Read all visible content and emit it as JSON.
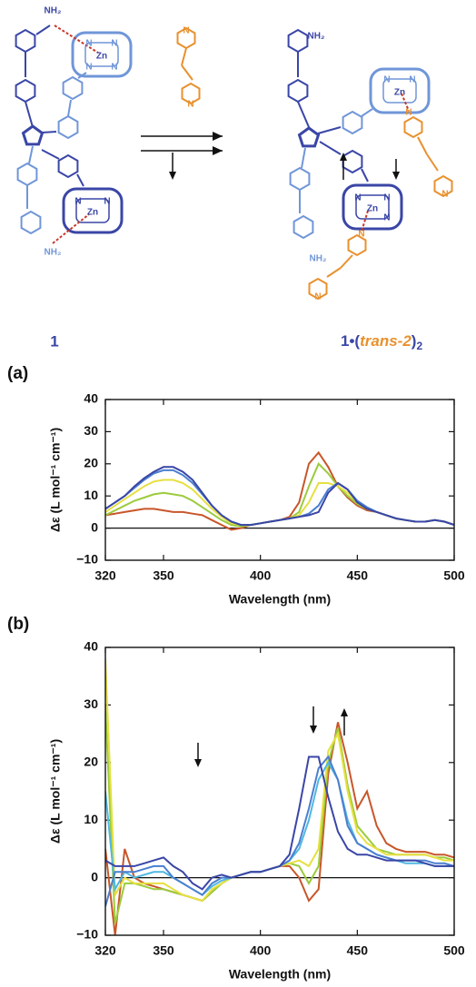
{
  "scheme": {
    "reactant_label": "1",
    "product_label": [
      "1",
      "•(",
      "trans-2",
      ")",
      "2"
    ],
    "atom_labels": [
      "NH₂",
      "Zn",
      "N",
      "N",
      "N",
      "N",
      "Zn",
      "N",
      "N",
      "NH₂",
      "N",
      "N",
      "NH₂",
      "Zn",
      "N",
      "N",
      "N",
      "Zn",
      "N",
      "N",
      "NH₂",
      "N",
      "N",
      "N",
      "N"
    ]
  },
  "chart_data": [
    {
      "type": "line",
      "panel_label": "(a)",
      "x_label": "Wavelength (nm)",
      "y_label": "Δε (L mol⁻¹ cm⁻¹)",
      "x": [
        320,
        325,
        330,
        335,
        340,
        345,
        350,
        355,
        360,
        365,
        370,
        375,
        380,
        385,
        390,
        395,
        400,
        405,
        410,
        415,
        420,
        425,
        430,
        435,
        440,
        445,
        450,
        455,
        460,
        465,
        470,
        475,
        480,
        485,
        490,
        495,
        500
      ],
      "series": [
        {
          "color": "#3a46a6",
          "values": [
            6,
            8,
            10,
            13,
            15.5,
            17.5,
            19,
            19,
            17.5,
            15,
            11,
            7,
            4,
            2,
            1,
            1,
            1.5,
            2,
            2.5,
            3,
            3.5,
            4,
            5,
            11,
            14,
            12,
            8,
            6,
            5,
            4,
            3,
            2.5,
            2,
            2,
            2.5,
            2,
            1
          ]
        },
        {
          "color": "#4b7fd0",
          "values": [
            6,
            8,
            10,
            12.5,
            15,
            17,
            18,
            18,
            16.5,
            14,
            10.5,
            7,
            4,
            2,
            1,
            1,
            1.5,
            2,
            2.5,
            3,
            3.5,
            4.5,
            7,
            12,
            14,
            12,
            8.5,
            6.5,
            5,
            4,
            3,
            2.5,
            2,
            2,
            2.5,
            2,
            1
          ]
        },
        {
          "color": "#e6e040",
          "values": [
            5,
            7,
            9,
            11,
            13,
            14.5,
            15,
            15,
            14,
            12,
            9,
            6,
            3.5,
            1.5,
            1,
            1,
            1.5,
            2,
            2.5,
            3,
            4,
            8,
            14,
            14,
            13,
            11,
            8,
            6,
            5,
            4,
            3,
            2.5,
            2,
            2,
            2.5,
            2,
            1
          ]
        },
        {
          "color": "#9ccb3c",
          "values": [
            4,
            5.5,
            7,
            8.5,
            9.5,
            10.5,
            11,
            10.5,
            10,
            8.5,
            6.5,
            4.5,
            2.5,
            1,
            0.5,
            1,
            1.5,
            2,
            2.5,
            3,
            5,
            13,
            20,
            17,
            13,
            10,
            7.5,
            6,
            5,
            4,
            3,
            2.5,
            2,
            2,
            2.5,
            2,
            1
          ]
        },
        {
          "color": "#c8562a",
          "values": [
            4,
            4.5,
            5,
            5.5,
            6,
            6,
            5.5,
            5,
            5,
            4.5,
            4,
            2.5,
            1,
            -0.5,
            0,
            1,
            1.5,
            2,
            2.5,
            3.5,
            8,
            20,
            23.5,
            19,
            13,
            9.5,
            7,
            5.5,
            5,
            4,
            3,
            2.5,
            2,
            2,
            2.5,
            2,
            1
          ]
        }
      ],
      "xlim": [
        320,
        500
      ],
      "xticks": [
        320,
        350,
        400,
        450,
        500
      ],
      "ylim": [
        -10,
        40
      ],
      "yticks": [
        {
          "value": -10,
          "label": "−10"
        },
        0,
        10,
        20,
        30,
        40
      ],
      "zero_line": true
    },
    {
      "type": "line",
      "panel_label": "(b)",
      "x_label": "Wavelength (nm)",
      "y_label": "Δε (L mol⁻¹ cm⁻¹)",
      "x": [
        320,
        325,
        330,
        335,
        340,
        345,
        350,
        355,
        360,
        365,
        370,
        375,
        380,
        385,
        390,
        395,
        400,
        405,
        410,
        415,
        420,
        425,
        430,
        435,
        440,
        445,
        450,
        455,
        460,
        465,
        470,
        475,
        480,
        485,
        490,
        495,
        500
      ],
      "series": [
        {
          "color": "#3a46a6",
          "values": [
            3,
            2,
            2,
            2,
            2.5,
            3,
            3.5,
            2,
            1,
            -1,
            -2,
            0,
            0.5,
            0,
            0.5,
            1,
            1,
            1.5,
            2,
            4,
            12,
            21,
            21,
            14,
            8,
            5,
            4,
            4,
            3.5,
            3,
            3,
            3,
            3,
            2.5,
            2,
            2,
            2
          ]
        },
        {
          "color": "#4b7fd0",
          "values": [
            -5,
            1,
            1,
            1,
            1.5,
            2,
            2,
            0,
            -1,
            -2,
            -3,
            -1,
            0,
            0,
            0.5,
            1,
            1,
            1.5,
            2,
            3,
            6,
            12,
            19,
            21,
            17,
            9,
            6,
            5,
            4,
            3.5,
            3,
            3,
            3,
            3,
            2.5,
            2.5,
            2
          ]
        },
        {
          "color": "#4fb8e2",
          "values": [
            15,
            -2,
            1,
            0,
            0.5,
            1,
            1,
            0,
            -1,
            -2,
            -3,
            -1.5,
            -0.5,
            0,
            0.5,
            1,
            1,
            1.5,
            2,
            3,
            5,
            10,
            17,
            20,
            17,
            10,
            6,
            5,
            4,
            3.5,
            3,
            2.5,
            2.5,
            2.5,
            2,
            2,
            2
          ]
        },
        {
          "color": "#e6e040",
          "values": [
            38,
            -3,
            0,
            -1,
            -1,
            -1,
            -1,
            -2,
            -3,
            -3.5,
            -4,
            -2,
            -1,
            0,
            0.5,
            1,
            1,
            1.5,
            2,
            2.5,
            3,
            2,
            5,
            22,
            25,
            15,
            8,
            6,
            5,
            4,
            4,
            4,
            4,
            4,
            3.5,
            3,
            3
          ]
        },
        {
          "color": "#9ccb3c",
          "values": [
            30,
            -8,
            -1,
            -1,
            -1.5,
            -2,
            -2,
            -2.5,
            -3,
            -3.5,
            -4,
            -2.5,
            -1,
            0,
            0.5,
            1,
            1,
            1.5,
            2,
            2.5,
            2,
            -1,
            2,
            20,
            26,
            16,
            9,
            7,
            5,
            4.5,
            4,
            4,
            4,
            4,
            3.5,
            3.5,
            3
          ]
        },
        {
          "color": "#c8562a",
          "values": [
            5,
            -10,
            5,
            0,
            -1,
            -1.5,
            -2,
            -2.5,
            -3,
            -3.5,
            -4,
            -2.5,
            -1,
            0,
            0.5,
            1,
            1,
            1.5,
            2,
            2,
            0,
            -4,
            -2,
            18,
            27,
            20,
            12,
            15,
            9,
            6,
            5,
            4.5,
            4.5,
            4.5,
            4,
            4,
            3.5
          ]
        }
      ],
      "xlim": [
        320,
        500
      ],
      "xticks": [
        320,
        350,
        400,
        450,
        500
      ],
      "ylim": [
        -10,
        40
      ],
      "yticks": [
        {
          "value": -10,
          "label": "−10"
        },
        0,
        10,
        20,
        30,
        40
      ],
      "zero_line": true
    }
  ]
}
